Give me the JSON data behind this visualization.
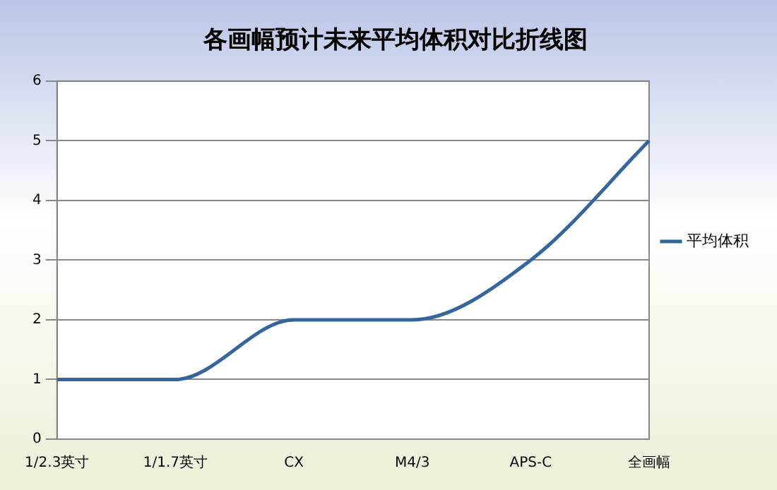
{
  "chart_data": {
    "type": "line",
    "title": "各画幅预计未来平均体积对比折线图",
    "categories": [
      "1/2.3英寸",
      "1/1.7英寸",
      "CX",
      "M4/3",
      "APS-C",
      "全画幅"
    ],
    "series": [
      {
        "name": "平均体积",
        "color": "#3366a0",
        "values": [
          1,
          1,
          2,
          2,
          3,
          5
        ]
      }
    ],
    "ylim": [
      0,
      6
    ],
    "yticks": [
      0,
      1,
      2,
      3,
      4,
      5,
      6
    ],
    "grid": "y",
    "legend": "right",
    "marker": "none",
    "line_style": "solid"
  }
}
